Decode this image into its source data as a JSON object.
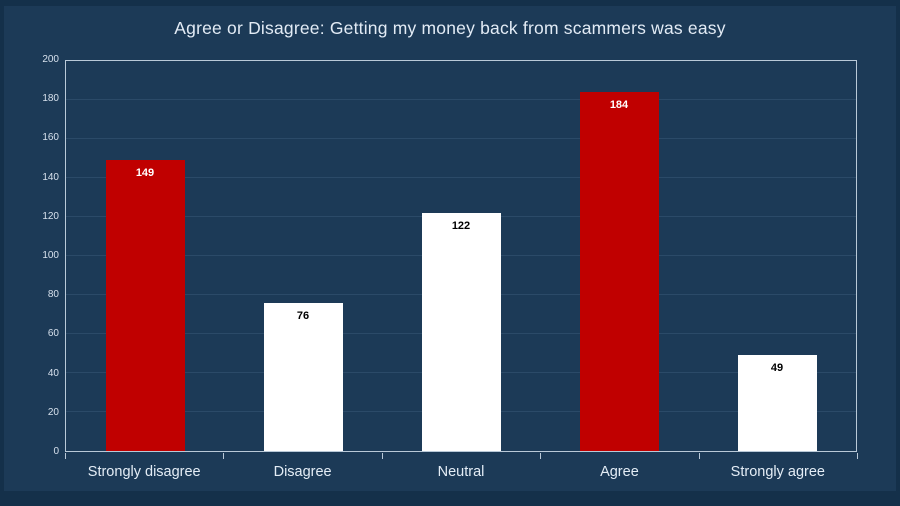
{
  "slide": {
    "outer_background": "#14304a",
    "chart_background": "#1c3a57"
  },
  "chart_data": {
    "type": "bar",
    "title": "Agree or Disagree: Getting my money back from scammers was easy",
    "categories": [
      "Strongly disagree",
      "Disagree",
      "Neutral",
      "Agree",
      "Strongly agree"
    ],
    "values": [
      149,
      76,
      122,
      184,
      49
    ],
    "data_labels": [
      "149",
      "76",
      "122",
      "184",
      "49"
    ],
    "bar_colors": [
      "#c00000",
      "#ffffff",
      "#ffffff",
      "#c00000",
      "#ffffff"
    ],
    "data_label_colors": [
      "#ffffff",
      "#000000",
      "#000000",
      "#ffffff",
      "#000000"
    ],
    "xlabel": "",
    "ylabel": "",
    "ylim": [
      0,
      200
    ],
    "yticks": [
      0,
      20,
      40,
      60,
      80,
      100,
      120,
      140,
      160,
      180,
      200
    ],
    "grid": true,
    "legend": false,
    "legend_position": "none",
    "colors": {
      "title_text": "#e2ebf5",
      "tick_text": "#d6e0ec",
      "category_text": "#e4edf6",
      "plot_border": "#b9c9d8",
      "gridline": "#2b4a68",
      "accent_red": "#c00000",
      "bar_white": "#ffffff"
    }
  }
}
